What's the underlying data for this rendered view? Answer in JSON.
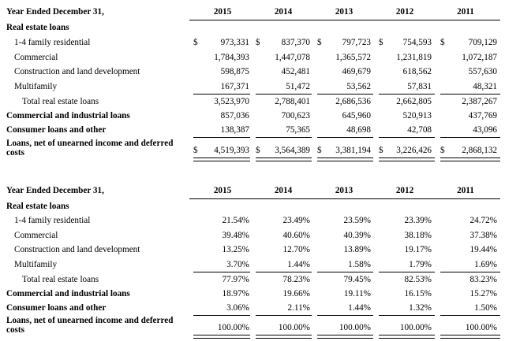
{
  "amounts": {
    "header": "Year Ended December 31,",
    "years": [
      "2015",
      "2014",
      "2013",
      "2012",
      "2011"
    ],
    "currency_symbol": "$",
    "rows": [
      {
        "label": "Real estate loans",
        "values": []
      },
      {
        "label": "1-4 family residential",
        "values": [
          "973,331",
          "837,370",
          "797,723",
          "754,593",
          "709,129"
        ]
      },
      {
        "label": "Commercial",
        "values": [
          "1,784,393",
          "1,447,078",
          "1,365,572",
          "1,231,819",
          "1,072,187"
        ]
      },
      {
        "label": "Construction and land development",
        "values": [
          "598,875",
          "452,481",
          "469,679",
          "618,562",
          "557,630"
        ]
      },
      {
        "label": "Multifamily",
        "values": [
          "167,371",
          "51,472",
          "53,562",
          "57,831",
          "48,321"
        ]
      },
      {
        "label": "Total real estate loans",
        "values": [
          "3,523,970",
          "2,788,401",
          "2,686,536",
          "2,662,805",
          "2,387,267"
        ]
      },
      {
        "label": "Commercial and industrial loans",
        "values": [
          "857,036",
          "700,623",
          "645,960",
          "520,913",
          "437,769"
        ]
      },
      {
        "label": "Consumer loans and other",
        "values": [
          "138,387",
          "75,365",
          "48,698",
          "42,708",
          "43,096"
        ]
      },
      {
        "label": "Loans, net of unearned income and deferred costs",
        "values": [
          "4,519,393",
          "3,564,389",
          "3,381,194",
          "3,226,426",
          "2,868,132"
        ]
      }
    ]
  },
  "percentages": {
    "header": "Year Ended December 31,",
    "years": [
      "2015",
      "2014",
      "2013",
      "2012",
      "2011"
    ],
    "rows": [
      {
        "label": "Real estate loans",
        "values": []
      },
      {
        "label": "1-4 family residential",
        "values": [
          "21.54%",
          "23.49%",
          "23.59%",
          "23.39%",
          "24.72%"
        ]
      },
      {
        "label": "Commercial",
        "values": [
          "39.48%",
          "40.60%",
          "40.39%",
          "38.18%",
          "37.38%"
        ]
      },
      {
        "label": "Construction and land development",
        "values": [
          "13.25%",
          "12.70%",
          "13.89%",
          "19.17%",
          "19.44%"
        ]
      },
      {
        "label": "Multifamily",
        "values": [
          "3.70%",
          "1.44%",
          "1.58%",
          "1.79%",
          "1.69%"
        ]
      },
      {
        "label": "Total real estate loans",
        "values": [
          "77.97%",
          "78.23%",
          "79.45%",
          "82.53%",
          "83.23%"
        ]
      },
      {
        "label": "Commercial and industrial loans",
        "values": [
          "18.97%",
          "19.66%",
          "19.11%",
          "16.15%",
          "15.27%"
        ]
      },
      {
        "label": "Consumer loans and other",
        "values": [
          "3.06%",
          "2.11%",
          "1.44%",
          "1.32%",
          "1.50%"
        ]
      },
      {
        "label": "Loans, net of unearned income and deferred costs",
        "values": [
          "100.00%",
          "100.00%",
          "100.00%",
          "100.00%",
          "100.00%"
        ]
      }
    ]
  }
}
